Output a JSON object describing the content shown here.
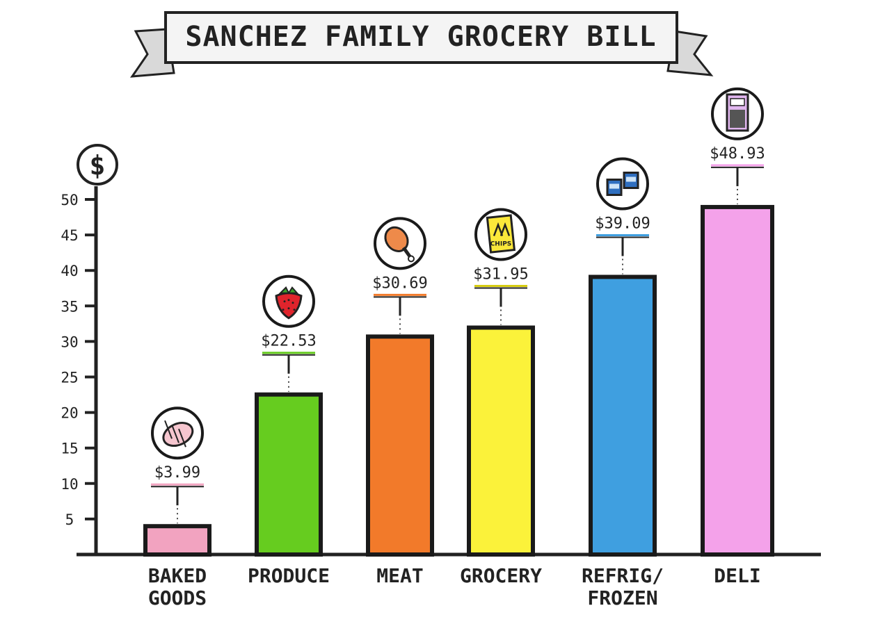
{
  "chart_data": {
    "type": "bar",
    "title": "SANCHEZ FAMILY GROCERY BILL",
    "ylabel": "$",
    "xlabel": "",
    "ylim": [
      0,
      50
    ],
    "yticks": [
      "5",
      "10",
      "15",
      "20",
      "25",
      "30",
      "35",
      "40",
      "45",
      "50"
    ],
    "categories": [
      [
        "BAKED",
        "GOODS"
      ],
      [
        "PRODUCE"
      ],
      [
        "MEAT"
      ],
      [
        "GROCERY"
      ],
      [
        "REFRIG/",
        "FROZEN"
      ],
      [
        "DELI"
      ]
    ],
    "values": [
      3.99,
      22.53,
      30.69,
      31.95,
      39.09,
      48.93
    ],
    "value_labels": [
      "$3.99",
      "$22.53",
      "$30.69",
      "$31.95",
      "$39.09",
      "$48.93"
    ],
    "colors": [
      "#f2a3c0",
      "#66cc1f",
      "#f27a2a",
      "#fbf23a",
      "#3f9fe0",
      "#f4a2ea"
    ],
    "icons": [
      "bread-icon",
      "strawberry-icon",
      "drumstick-icon",
      "chips-icon",
      "cans-icon",
      "deli-container-icon"
    ],
    "icon_text": {
      "chips": "CHIPS"
    },
    "grid": false,
    "legend": "none"
  }
}
